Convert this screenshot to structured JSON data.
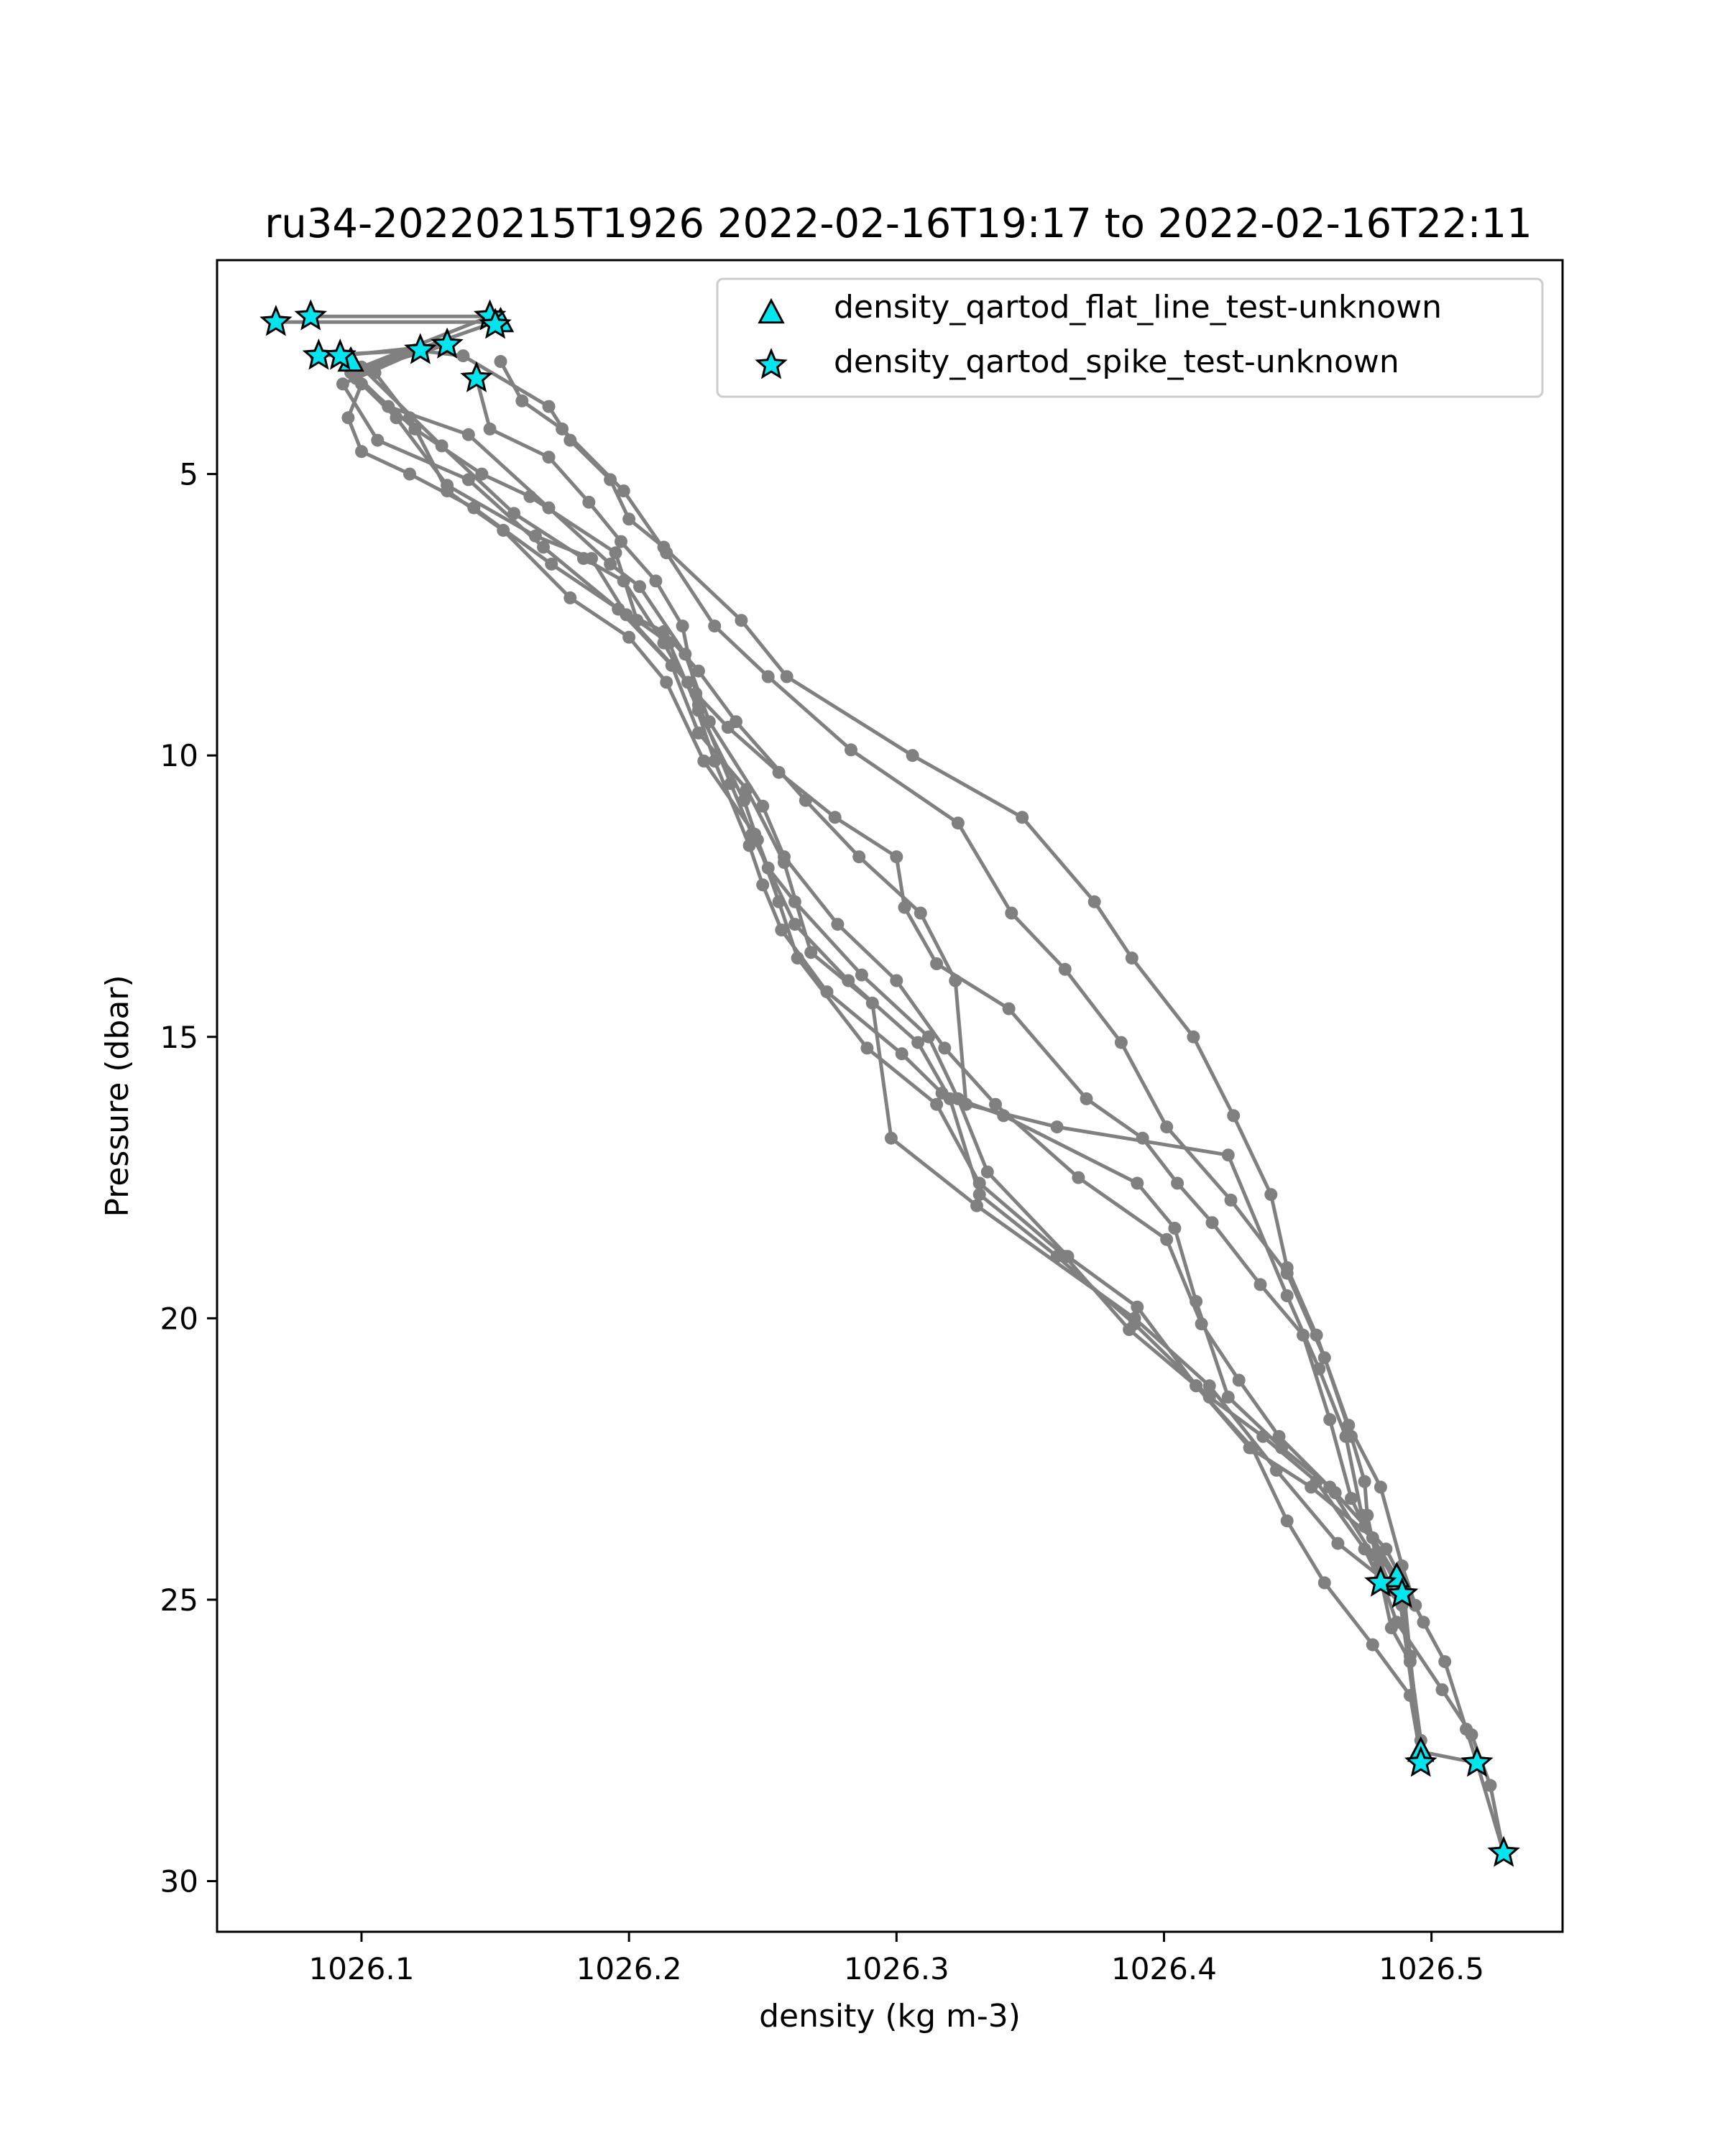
{
  "chart_data": {
    "type": "line",
    "title": "ru34-20220215T1926 2022-02-16T19:17 to 2022-02-16T22:11",
    "xlabel": "density (kg m-3)",
    "ylabel": "Pressure (dbar)",
    "xlim": [
      1026.046,
      1026.549
    ],
    "ylim": [
      30.9,
      1.2
    ],
    "y_inverted": true,
    "x_ticks": [
      1026.1,
      1026.2,
      1026.3,
      1026.4,
      1026.5
    ],
    "x_tick_labels": [
      "1026.1",
      "1026.2",
      "1026.3",
      "1026.4",
      "1026.5"
    ],
    "y_ticks": [
      5,
      10,
      15,
      20,
      25,
      30
    ],
    "y_tick_labels": [
      "5",
      "10",
      "15",
      "20",
      "25",
      "30"
    ],
    "grid": false,
    "legend_position": "top-right",
    "line_color": "#808080",
    "marker_color": "#00e5ee",
    "legend": [
      {
        "label": "density_qartod_flat_line_test-unknown",
        "marker": "triangle"
      },
      {
        "label": "density_qartod_spike_test-unknown",
        "marker": "star"
      }
    ],
    "series": [
      {
        "points": [
          [
            1026.068,
            2.3
          ],
          [
            1026.15,
            2.3
          ],
          [
            1026.096,
            3.2
          ],
          [
            1026.12,
            4.2
          ],
          [
            1026.145,
            5.0
          ],
          [
            1026.163,
            5.4
          ],
          [
            1026.195,
            6.4
          ],
          [
            1026.203,
            7.6
          ],
          [
            1026.215,
            8.0
          ],
          [
            1026.226,
            9.2
          ],
          [
            1026.243,
            10.8
          ],
          [
            1026.248,
            11.5
          ],
          [
            1026.252,
            12.0
          ],
          [
            1026.262,
            12.6
          ],
          [
            1026.287,
            13.9
          ],
          [
            1026.312,
            15.0
          ],
          [
            1026.323,
            16.1
          ],
          [
            1026.334,
            17.4
          ],
          [
            1026.364,
            18.9
          ],
          [
            1026.39,
            19.8
          ],
          [
            1026.412,
            21.2
          ],
          [
            1026.432,
            22.3
          ],
          [
            1026.455,
            23.0
          ],
          [
            1026.478,
            23.9
          ],
          [
            1026.487,
            24.6
          ],
          [
            1026.496,
            27.7
          ],
          [
            1026.517,
            27.9
          ],
          [
            1026.527,
            29.5
          ]
        ]
      },
      {
        "points": [
          [
            1026.081,
            2.2
          ],
          [
            1026.148,
            2.2
          ],
          [
            1026.1,
            3.1
          ],
          [
            1026.13,
            4.5
          ],
          [
            1026.157,
            5.7
          ],
          [
            1026.183,
            6.5
          ],
          [
            1026.198,
            6.9
          ],
          [
            1026.213,
            8.0
          ],
          [
            1026.226,
            9.1
          ],
          [
            1026.238,
            10.5
          ],
          [
            1026.246,
            11.4
          ],
          [
            1026.262,
            13.0
          ],
          [
            1026.282,
            14.0
          ],
          [
            1026.308,
            15.1
          ],
          [
            1026.32,
            16.1
          ],
          [
            1026.331,
            17.8
          ],
          [
            1026.36,
            18.9
          ],
          [
            1026.389,
            20.1
          ],
          [
            1026.417,
            21.4
          ],
          [
            1026.437,
            22.1
          ],
          [
            1026.457,
            22.9
          ],
          [
            1026.475,
            24.1
          ],
          [
            1026.481,
            24.7
          ],
          [
            1026.489,
            25.1
          ],
          [
            1026.496,
            27.9
          ]
        ]
      },
      {
        "points": [
          [
            1026.084,
            2.9
          ],
          [
            1026.122,
            2.8
          ],
          [
            1026.098,
            3.3
          ],
          [
            1026.113,
            4.0
          ],
          [
            1026.132,
            5.2
          ],
          [
            1026.165,
            6.1
          ],
          [
            1026.186,
            6.5
          ],
          [
            1026.199,
            7.5
          ],
          [
            1026.222,
            8.7
          ],
          [
            1026.232,
            10.1
          ],
          [
            1026.245,
            11.6
          ],
          [
            1026.25,
            12.3
          ],
          [
            1026.257,
            13.1
          ],
          [
            1026.274,
            14.2
          ],
          [
            1026.302,
            15.3
          ],
          [
            1026.317,
            16.0
          ],
          [
            1026.34,
            16.4
          ],
          [
            1026.39,
            17.6
          ],
          [
            1026.404,
            18.4
          ],
          [
            1026.412,
            19.7
          ],
          [
            1026.424,
            21.4
          ],
          [
            1026.444,
            22.3
          ],
          [
            1026.462,
            23.0
          ],
          [
            1026.478,
            24.2
          ],
          [
            1026.487,
            25.4
          ],
          [
            1026.504,
            26.6
          ],
          [
            1026.515,
            27.4
          ],
          [
            1026.522,
            28.3
          ],
          [
            1026.527,
            29.5
          ]
        ]
      },
      {
        "points": [
          [
            1026.092,
            2.9
          ],
          [
            1026.132,
            2.7
          ],
          [
            1026.097,
            3.2
          ],
          [
            1026.11,
            3.8
          ],
          [
            1026.14,
            4.3
          ],
          [
            1026.17,
            5.6
          ],
          [
            1026.193,
            6.6
          ],
          [
            1026.204,
            7.0
          ],
          [
            1026.221,
            8.2
          ],
          [
            1026.23,
            9.4
          ],
          [
            1026.25,
            10.9
          ],
          [
            1026.258,
            11.8
          ],
          [
            1026.278,
            13.0
          ],
          [
            1026.3,
            14.0
          ],
          [
            1026.318,
            15.2
          ],
          [
            1026.337,
            16.2
          ],
          [
            1026.368,
            17.5
          ],
          [
            1026.401,
            18.6
          ],
          [
            1026.414,
            20.1
          ],
          [
            1026.428,
            21.1
          ],
          [
            1026.443,
            22.1
          ],
          [
            1026.464,
            23.1
          ],
          [
            1026.483,
            24.1
          ],
          [
            1026.497,
            25.4
          ],
          [
            1026.505,
            26.1
          ],
          [
            1026.513,
            27.3
          ],
          [
            1026.517,
            27.9
          ]
        ]
      },
      {
        "points": [
          [
            1026.143,
            3.3
          ],
          [
            1026.148,
            4.2
          ],
          [
            1026.17,
            4.7
          ],
          [
            1026.185,
            5.5
          ],
          [
            1026.197,
            6.2
          ],
          [
            1026.21,
            6.9
          ],
          [
            1026.22,
            7.7
          ],
          [
            1026.225,
            8.9
          ],
          [
            1026.237,
            9.5
          ],
          [
            1026.256,
            10.3
          ],
          [
            1026.277,
            11.1
          ],
          [
            1026.3,
            11.8
          ],
          [
            1026.303,
            12.7
          ],
          [
            1026.315,
            13.7
          ],
          [
            1026.342,
            14.5
          ],
          [
            1026.371,
            16.1
          ],
          [
            1026.392,
            16.8
          ],
          [
            1026.405,
            17.6
          ],
          [
            1026.418,
            18.3
          ],
          [
            1026.436,
            19.4
          ],
          [
            1026.452,
            20.3
          ],
          [
            1026.462,
            21.8
          ],
          [
            1026.47,
            23.2
          ],
          [
            1026.475,
            23.7
          ],
          [
            1026.49,
            25.0
          ],
          [
            1026.492,
            26.0
          ],
          [
            1026.496,
            27.8
          ]
        ]
      },
      {
        "points": [
          [
            1026.152,
            3.0
          ],
          [
            1026.16,
            3.7
          ],
          [
            1026.175,
            4.2
          ],
          [
            1026.198,
            5.3
          ],
          [
            1026.214,
            6.4
          ],
          [
            1026.232,
            7.7
          ],
          [
            1026.252,
            8.6
          ],
          [
            1026.283,
            9.9
          ],
          [
            1026.323,
            11.2
          ],
          [
            1026.343,
            12.8
          ],
          [
            1026.363,
            13.8
          ],
          [
            1026.384,
            15.1
          ],
          [
            1026.401,
            16.6
          ],
          [
            1026.425,
            17.9
          ],
          [
            1026.446,
            19.2
          ],
          [
            1026.46,
            20.7
          ],
          [
            1026.47,
            22.1
          ],
          [
            1026.475,
            22.9
          ],
          [
            1026.476,
            23.5
          ],
          [
            1026.48,
            24.4
          ],
          [
            1026.485,
            25.5
          ],
          [
            1026.492,
            26.1
          ],
          [
            1026.496,
            27.5
          ]
        ]
      },
      {
        "points": [
          [
            1026.12,
            2.8
          ],
          [
            1026.138,
            2.9
          ],
          [
            1026.17,
            3.8
          ],
          [
            1026.178,
            4.4
          ],
          [
            1026.193,
            5.1
          ],
          [
            1026.2,
            5.8
          ],
          [
            1026.213,
            6.3
          ],
          [
            1026.242,
            7.6
          ],
          [
            1026.259,
            8.6
          ],
          [
            1026.306,
            10.0
          ],
          [
            1026.347,
            11.1
          ],
          [
            1026.374,
            12.6
          ],
          [
            1026.388,
            13.6
          ],
          [
            1026.411,
            15.0
          ],
          [
            1026.426,
            16.4
          ],
          [
            1026.44,
            17.8
          ],
          [
            1026.446,
            19.1
          ],
          [
            1026.457,
            20.3
          ],
          [
            1026.469,
            21.9
          ],
          [
            1026.481,
            23.0
          ],
          [
            1026.489,
            24.4
          ],
          [
            1026.494,
            25.1
          ]
        ]
      },
      {
        "points": [
          [
            1026.1,
            3.4
          ],
          [
            1026.095,
            4.0
          ],
          [
            1026.1,
            4.6
          ],
          [
            1026.118,
            5.0
          ],
          [
            1026.142,
            5.6
          ],
          [
            1026.171,
            6.6
          ],
          [
            1026.196,
            7.4
          ],
          [
            1026.213,
            7.8
          ],
          [
            1026.226,
            8.5
          ],
          [
            1026.24,
            9.4
          ],
          [
            1026.266,
            10.8
          ],
          [
            1026.286,
            11.8
          ],
          [
            1026.309,
            12.8
          ],
          [
            1026.322,
            14.0
          ],
          [
            1026.326,
            16.2
          ],
          [
            1026.36,
            16.6
          ],
          [
            1026.424,
            17.1
          ],
          [
            1026.446,
            19.6
          ],
          [
            1026.458,
            20.9
          ],
          [
            1026.468,
            22.1
          ],
          [
            1026.474,
            23.5
          ],
          [
            1026.484,
            24.7
          ]
        ]
      },
      {
        "points": [
          [
            1026.105,
            3.2
          ],
          [
            1026.118,
            4.0
          ],
          [
            1026.132,
            5.3
          ],
          [
            1026.153,
            6.0
          ],
          [
            1026.178,
            7.2
          ],
          [
            1026.2,
            7.9
          ],
          [
            1026.214,
            8.7
          ],
          [
            1026.228,
            10.1
          ],
          [
            1026.247,
            11.4
          ],
          [
            1026.256,
            12.6
          ],
          [
            1026.263,
            13.6
          ],
          [
            1026.289,
            15.2
          ],
          [
            1026.315,
            16.2
          ],
          [
            1026.331,
            17.6
          ],
          [
            1026.363,
            18.9
          ],
          [
            1026.387,
            20.2
          ],
          [
            1026.412,
            21.2
          ],
          [
            1026.433,
            22.3
          ],
          [
            1026.446,
            23.6
          ],
          [
            1026.46,
            24.7
          ],
          [
            1026.478,
            25.8
          ],
          [
            1026.492,
            26.7
          ],
          [
            1026.496,
            27.8
          ]
        ]
      },
      {
        "points": [
          [
            1026.083,
            2.9
          ],
          [
            1026.12,
            2.8
          ],
          [
            1026.093,
            3.4
          ],
          [
            1026.106,
            4.4
          ],
          [
            1026.14,
            5.1
          ],
          [
            1026.168,
            6.3
          ],
          [
            1026.196,
            7.4
          ],
          [
            1026.216,
            8.4
          ],
          [
            1026.226,
            9.6
          ],
          [
            1026.244,
            10.6
          ],
          [
            1026.258,
            11.9
          ],
          [
            1026.268,
            13.5
          ],
          [
            1026.291,
            14.4
          ],
          [
            1026.298,
            16.8
          ],
          [
            1026.33,
            18.0
          ],
          [
            1026.389,
            20.0
          ],
          [
            1026.417,
            21.2
          ],
          [
            1026.442,
            22.7
          ],
          [
            1026.465,
            24.0
          ],
          [
            1026.481,
            24.6
          ]
        ]
      }
    ],
    "flat_line_flags": [
      [
        1026.496,
        27.7
      ],
      [
        1026.487,
        24.6
      ],
      [
        1026.152,
        2.3
      ],
      [
        1026.096,
        3.0
      ]
    ],
    "spike_flags": [
      [
        1026.068,
        2.3
      ],
      [
        1026.081,
        2.2
      ],
      [
        1026.148,
        2.2
      ],
      [
        1026.15,
        2.35
      ],
      [
        1026.084,
        2.9
      ],
      [
        1026.092,
        2.9
      ],
      [
        1026.122,
        2.8
      ],
      [
        1026.132,
        2.7
      ],
      [
        1026.143,
        3.3
      ],
      [
        1026.481,
        24.7
      ],
      [
        1026.489,
        24.9
      ],
      [
        1026.496,
        27.9
      ],
      [
        1026.517,
        27.9
      ],
      [
        1026.527,
        29.5
      ]
    ]
  }
}
